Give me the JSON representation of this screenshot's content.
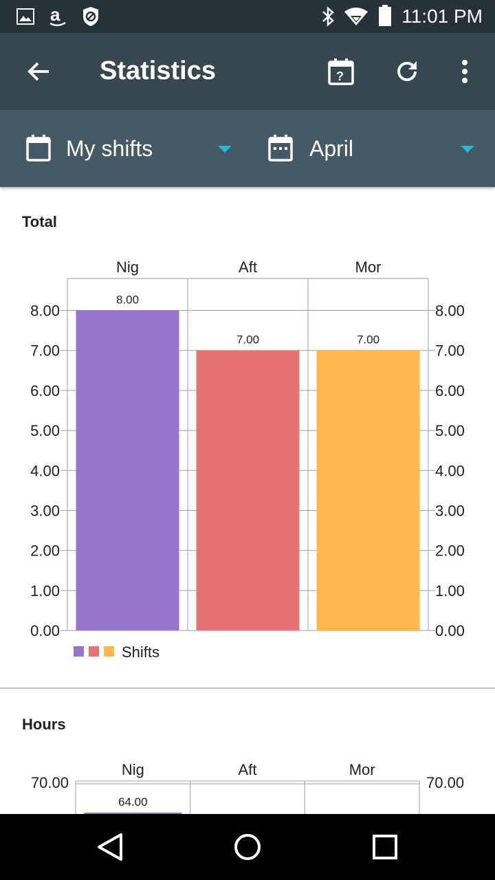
{
  "status_bar": {
    "time": "11:01 PM",
    "icons": [
      "image-icon",
      "amazon-icon",
      "shield-block-icon",
      "bluetooth-icon",
      "wifi-icon",
      "battery-icon"
    ]
  },
  "app_bar": {
    "title": "Statistics",
    "actions": [
      "back-arrow-icon",
      "calendar-help-icon",
      "refresh-icon",
      "more-vert-icon"
    ]
  },
  "filters": {
    "shift_filter": "My shifts",
    "month_filter": "April",
    "accent_color": "#29b6d8"
  },
  "sections": {
    "total_title": "Total",
    "hours_title": "Hours"
  },
  "chart_data": [
    {
      "type": "bar",
      "title": "Total",
      "categories": [
        "Nig",
        "Aft",
        "Mor"
      ],
      "values": [
        8,
        7,
        7
      ],
      "value_labels": [
        "8.00",
        "7.00",
        "7.00"
      ],
      "colors": [
        "#9575cd",
        "#e57373",
        "#ffb74d"
      ],
      "ylim": [
        0,
        8.8
      ],
      "yticks": [
        "0.00",
        "1.00",
        "2.00",
        "3.00",
        "4.00",
        "5.00",
        "6.00",
        "7.00",
        "8.00"
      ],
      "legend": "Shifts",
      "grid": true
    },
    {
      "type": "bar",
      "title": "Hours",
      "categories": [
        "Nig",
        "Aft",
        "Mor"
      ],
      "visible_value_labels": [
        "64.00"
      ],
      "yticks_visible": [
        "70.00"
      ]
    }
  ]
}
